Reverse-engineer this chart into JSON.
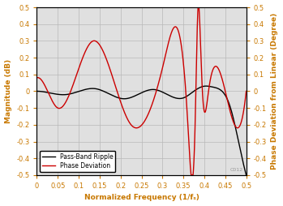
{
  "xlabel": "Normalized Frequency (1/fₛ)",
  "ylabel_left": "Magnitude (dB)",
  "ylabel_right": "Phase Deviation from Linear (Degree)",
  "xlim": [
    0,
    0.5
  ],
  "ylim": [
    -0.5,
    0.5
  ],
  "xticks": [
    0,
    0.05,
    0.1,
    0.15,
    0.2,
    0.25,
    0.3,
    0.35,
    0.4,
    0.45,
    0.5
  ],
  "yticks_left": [
    -0.5,
    -0.4,
    -0.3,
    -0.2,
    -0.1,
    0.0,
    0.1,
    0.2,
    0.3,
    0.4,
    0.5
  ],
  "yticks_right": [
    -0.5,
    -0.4,
    -0.3,
    -0.2,
    -0.1,
    0,
    0.1,
    0.2,
    0.3,
    0.4,
    0.5
  ],
  "legend_labels": [
    "Pass-Band Ripple",
    "Phase Deviation"
  ],
  "line_colors": [
    "#000000",
    "#cc0000"
  ],
  "axis_label_color": "#c87800",
  "tick_color": "#c87800",
  "grid_color": "#b8b8b8",
  "background_color": "#e0e0e0",
  "watermark": "C012",
  "legend_loc": "lower left"
}
